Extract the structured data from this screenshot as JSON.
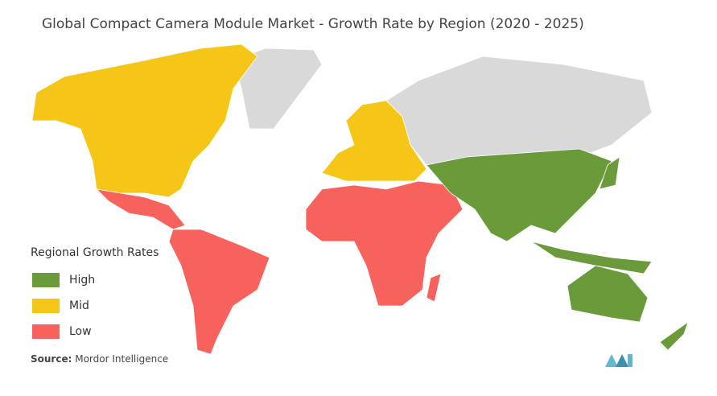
{
  "title": "Global Compact Camera Module Market - Growth Rate by Region (2020 - 2025)",
  "legend": {
    "title": "Regional Growth Rates",
    "items": [
      {
        "label": "High",
        "color": "#6a9a3a"
      },
      {
        "label": "Mid",
        "color": "#f5c518"
      },
      {
        "label": "Low",
        "color": "#f7625d"
      }
    ]
  },
  "source": {
    "label": "Source:",
    "text": "Mordor Intelligence"
  }
}
